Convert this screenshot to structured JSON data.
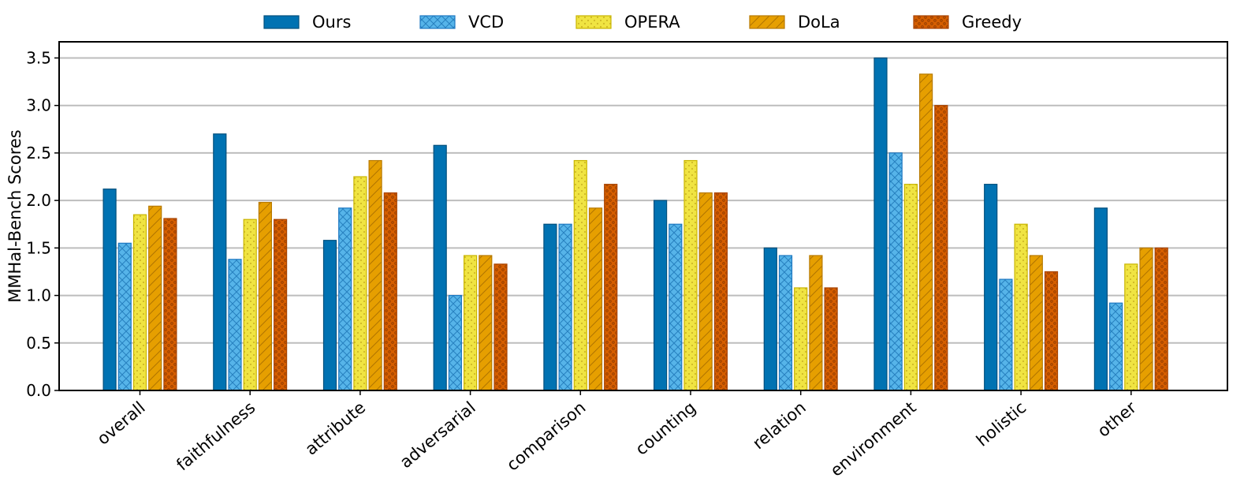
{
  "chart_data": {
    "type": "bar",
    "title": "",
    "xlabel": "",
    "ylabel": "MMHal-Bench Scores",
    "ylim": [
      0,
      3.67
    ],
    "yticks": [
      "0.0",
      "0.5",
      "1.0",
      "1.5",
      "2.0",
      "2.5",
      "3.0",
      "3.5"
    ],
    "grid": true,
    "legend_position": "top-center",
    "categories": [
      "overall",
      "faithfulness",
      "attribute",
      "adversarial",
      "comparison",
      "counting",
      "relation",
      "environment",
      "holistic",
      "other"
    ],
    "series": [
      {
        "name": "Ours",
        "color": "#0072b2",
        "pattern": "solid",
        "values": [
          2.12,
          2.7,
          1.58,
          2.58,
          1.75,
          2.0,
          1.5,
          3.5,
          2.17,
          1.92
        ]
      },
      {
        "name": "VCD",
        "color": "#56b4e9",
        "pattern": "crosshatch",
        "values": [
          1.55,
          1.38,
          1.92,
          1.0,
          1.75,
          1.75,
          1.42,
          2.5,
          1.17,
          0.92
        ]
      },
      {
        "name": "OPERA",
        "color": "#f0e442",
        "pattern": "dots",
        "values": [
          1.85,
          1.8,
          2.25,
          1.42,
          2.42,
          2.42,
          1.08,
          2.17,
          1.75,
          1.33
        ]
      },
      {
        "name": "DoLa",
        "color": "#e69f00",
        "pattern": "diagonal",
        "values": [
          1.94,
          1.98,
          2.42,
          1.42,
          1.92,
          2.08,
          1.42,
          3.33,
          1.42,
          1.5
        ]
      },
      {
        "name": "Greedy",
        "color": "#d55e00",
        "pattern": "circles",
        "values": [
          1.81,
          1.8,
          2.08,
          1.33,
          2.17,
          2.08,
          1.08,
          3.0,
          1.25,
          1.5
        ]
      }
    ]
  }
}
